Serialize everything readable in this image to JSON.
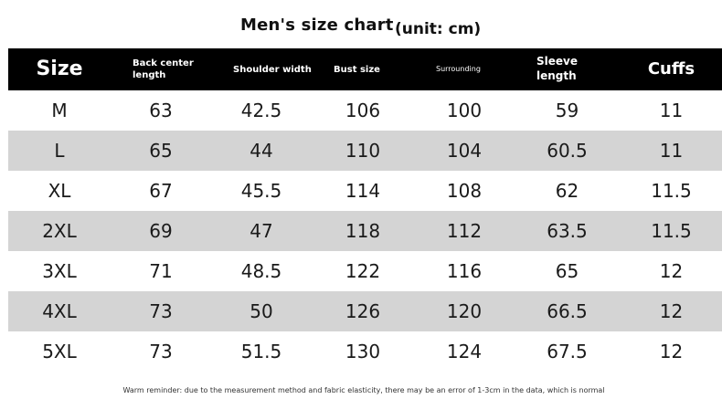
{
  "header": {
    "title": "Men's size chart",
    "unit": "(unit: cm)"
  },
  "table": {
    "columns": [
      "Size",
      "Back center length",
      "Shoulder width",
      "Bust size",
      "Surrounding",
      "Sleeve length",
      "Cuffs"
    ],
    "rows": [
      [
        "M",
        "63",
        "42.5",
        "106",
        "100",
        "59",
        "11"
      ],
      [
        "L",
        "65",
        "44",
        "110",
        "104",
        "60.5",
        "11"
      ],
      [
        "XL",
        "67",
        "45.5",
        "114",
        "108",
        "62",
        "11.5"
      ],
      [
        "2XL",
        "69",
        "47",
        "118",
        "112",
        "63.5",
        "11.5"
      ],
      [
        "3XL",
        "71",
        "48.5",
        "122",
        "116",
        "65",
        "12"
      ],
      [
        "4XL",
        "73",
        "50",
        "126",
        "120",
        "66.5",
        "12"
      ],
      [
        "5XL",
        "73",
        "51.5",
        "130",
        "124",
        "67.5",
        "12"
      ]
    ]
  },
  "footnote": "Warm reminder: due to the measurement method and fabric elasticity, there may be an error of 1-3cm in the data, which is normal",
  "colors": {
    "header_bg": "#000000",
    "header_text": "#ffffff",
    "stripe": "#d4d4d4"
  }
}
